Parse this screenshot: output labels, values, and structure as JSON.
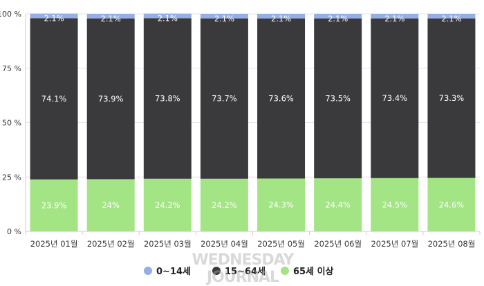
{
  "chart_data": {
    "type": "bar",
    "stacked": true,
    "categories": [
      "2025년 01월",
      "2025년 02월",
      "2025년 03월",
      "2025년 04월",
      "2025년 05월",
      "2025년 06월",
      "2025년 07월",
      "2025년 08월"
    ],
    "series": [
      {
        "name": "65세 이상",
        "color": "#a3e484",
        "values": [
          23.9,
          24,
          24.2,
          24.2,
          24.3,
          24.4,
          24.5,
          24.6
        ],
        "labels": [
          "23.9%",
          "24%",
          "24.2%",
          "24.2%",
          "24.3%",
          "24.4%",
          "24.5%",
          "24.6%"
        ]
      },
      {
        "name": "15~64세",
        "color": "#3a3a3d",
        "values": [
          74.1,
          73.9,
          73.8,
          73.7,
          73.6,
          73.5,
          73.4,
          73.3
        ],
        "labels": [
          "74.1%",
          "73.9%",
          "73.8%",
          "73.7%",
          "73.6%",
          "73.5%",
          "73.4%",
          "73.3%"
        ]
      },
      {
        "name": "0~14세",
        "color": "#94aee6",
        "values": [
          2.1,
          2.1,
          2.1,
          2.1,
          2.1,
          2.1,
          2.1,
          2.1
        ],
        "labels": [
          "2.1%",
          "2.1%",
          "2.1%",
          "2.1%",
          "2.1%",
          "2.1%",
          "2.1%",
          "2.1%"
        ]
      }
    ],
    "yticks": [
      "0 %",
      "25 %",
      "50 %",
      "75 %",
      "100 %"
    ],
    "ylim": [
      0,
      100
    ],
    "legend_position": "bottom",
    "legend_order": [
      "0~14세",
      "15~64세",
      "65세 이상"
    ],
    "grid": true
  },
  "watermark": "WEDNESDAY JOURNAL"
}
